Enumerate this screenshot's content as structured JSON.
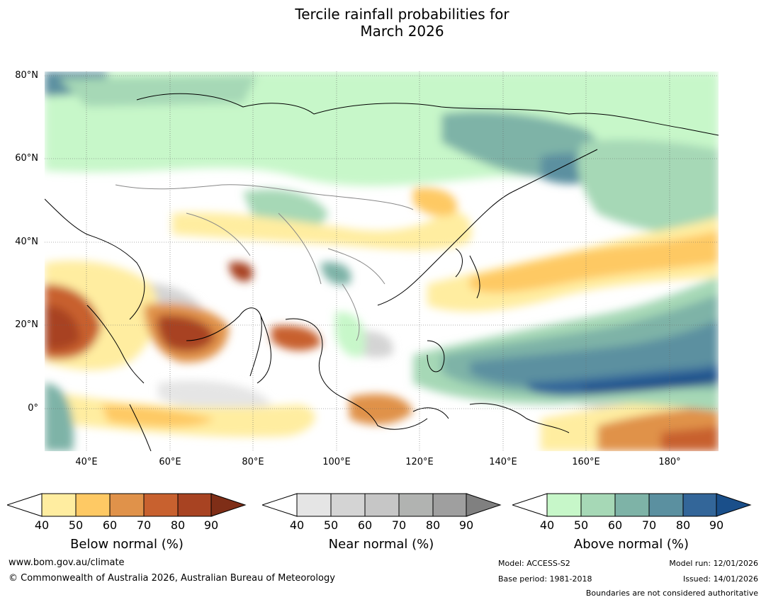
{
  "title": {
    "line1": "Tercile rainfall probabilities for",
    "line2": "March 2026"
  },
  "map": {
    "region": "Asia and western Pacific",
    "lat_labels": [
      "80°N",
      "60°N",
      "40°N",
      "20°N",
      "0°"
    ],
    "lon_labels": [
      "40°E",
      "60°E",
      "80°E",
      "100°E",
      "120°E",
      "140°E",
      "160°E",
      "180°"
    ]
  },
  "colorbars": {
    "below": {
      "title": "Below normal (%)",
      "ticks": [
        "40",
        "50",
        "60",
        "70",
        "80",
        "90"
      ],
      "colors": [
        "#ffeda0",
        "#fec964",
        "#e0924a",
        "#c8612f",
        "#a84322",
        "#7f2e17"
      ]
    },
    "near": {
      "title": "Near normal (%)",
      "ticks": [
        "40",
        "50",
        "60",
        "70",
        "80",
        "90"
      ],
      "colors": [
        "#e5e5e5",
        "#d4d4d4",
        "#c6c6c6",
        "#b1b3b1",
        "#9f9f9f",
        "#808080"
      ]
    },
    "above": {
      "title": "Above normal (%)",
      "ticks": [
        "40",
        "50",
        "60",
        "70",
        "80",
        "90"
      ],
      "colors": [
        "#c7f7c9",
        "#a6d8b6",
        "#7eb3a7",
        "#5b90a0",
        "#336699",
        "#1a4f8a"
      ]
    }
  },
  "footer": {
    "website": "www.bom.gov.au/climate",
    "copyright": "© Commonwealth of Australia 2026, Australian Bureau of Meteorology",
    "model": "Model: ACCESS-S2",
    "base_period": "Base period: 1981-2018",
    "model_run": "Model run: 12/01/2026",
    "issued": "Issued: 14/01/2026",
    "disclaimer": "Boundaries are not considered authoritative"
  }
}
